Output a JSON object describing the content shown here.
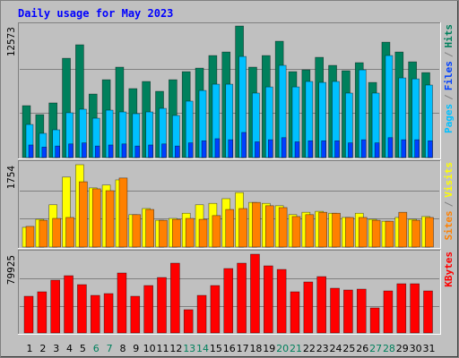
{
  "chart_data": [
    {
      "type": "bar",
      "title": "Daily usage for May 2023",
      "legend_separator": "/",
      "ylim": [
        0,
        12750
      ],
      "yticks": [
        12573
      ],
      "series": [
        {
          "name": "Hits",
          "color": "#00805c",
          "values": [
            4960,
            4100,
            5220,
            9490,
            10780,
            6070,
            7440,
            8640,
            6590,
            7270,
            6330,
            7440,
            8210,
            8550,
            9750,
            10090,
            12573,
            8640,
            9750,
            11120,
            8210,
            8380,
            9580,
            8810,
            8300,
            9070,
            7180,
            11030,
            10090,
            9150,
            8120
          ]
        },
        {
          "name": "Pages",
          "color": "#00c0ff",
          "values": [
            3160,
            2310,
            2650,
            4280,
            4620,
            3760,
            4530,
            4360,
            4190,
            4360,
            4700,
            4020,
            5390,
            6410,
            7010,
            7010,
            9660,
            6160,
            6750,
            8810,
            6750,
            7270,
            7180,
            7270,
            6160,
            8380,
            6160,
            9750,
            7610,
            7520,
            6930
          ]
        },
        {
          "name": "Files",
          "color": "#0040ff",
          "values": [
            1200,
            1000,
            1100,
            1300,
            1400,
            1100,
            1200,
            1300,
            1100,
            1200,
            1300,
            1100,
            1400,
            1600,
            1800,
            1700,
            2400,
            1500,
            1700,
            1900,
            1500,
            1600,
            1600,
            1600,
            1400,
            1700,
            1400,
            1900,
            1700,
            1700,
            1600
          ]
        }
      ]
    },
    {
      "type": "bar",
      "ylim": [
        0,
        1811
      ],
      "yticks": [
        1754
      ],
      "series": [
        {
          "name": "Visits",
          "color": "#ffff00",
          "values": [
            420,
            590,
            900,
            1490,
            1754,
            1260,
            1320,
            1430,
            690,
            820,
            570,
            610,
            720,
            900,
            930,
            1030,
            1160,
            950,
            930,
            880,
            690,
            740,
            760,
            720,
            630,
            720,
            590,
            550,
            630,
            590,
            650
          ]
        },
        {
          "name": "Sites",
          "color": "#ff8000",
          "values": [
            440,
            570,
            610,
            630,
            1390,
            1240,
            1200,
            1470,
            690,
            800,
            570,
            590,
            610,
            590,
            670,
            800,
            820,
            950,
            880,
            840,
            650,
            690,
            740,
            720,
            630,
            630,
            570,
            550,
            740,
            570,
            630
          ]
        }
      ]
    },
    {
      "type": "bar",
      "ylim": [
        0,
        82650
      ],
      "yticks": [
        79925
      ],
      "categories": [
        "1",
        "2",
        "3",
        "4",
        "5",
        "6",
        "7",
        "8",
        "9",
        "10",
        "11",
        "12",
        "13",
        "14",
        "15",
        "16",
        "17",
        "18",
        "19",
        "20",
        "21",
        "22",
        "23",
        "24",
        "25",
        "26",
        "27",
        "28",
        "29",
        "30",
        "31"
      ],
      "highlighted_categories": [
        "6",
        "7",
        "13",
        "14",
        "20",
        "21",
        "27",
        "28"
      ],
      "highlight_color": "#00805c",
      "series": [
        {
          "name": "KBytes",
          "color": "#ff0000",
          "values": [
            37230,
            41770,
            53570,
            58110,
            49030,
            38140,
            39950,
            60830,
            37230,
            48120,
            56290,
            70820,
            23610,
            38140,
            48120,
            65370,
            70820,
            79925,
            68100,
            64470,
            41770,
            51750,
            57200,
            45400,
            43580,
            44490,
            25420,
            42670,
            49940,
            49940,
            42670
          ]
        }
      ]
    }
  ]
}
